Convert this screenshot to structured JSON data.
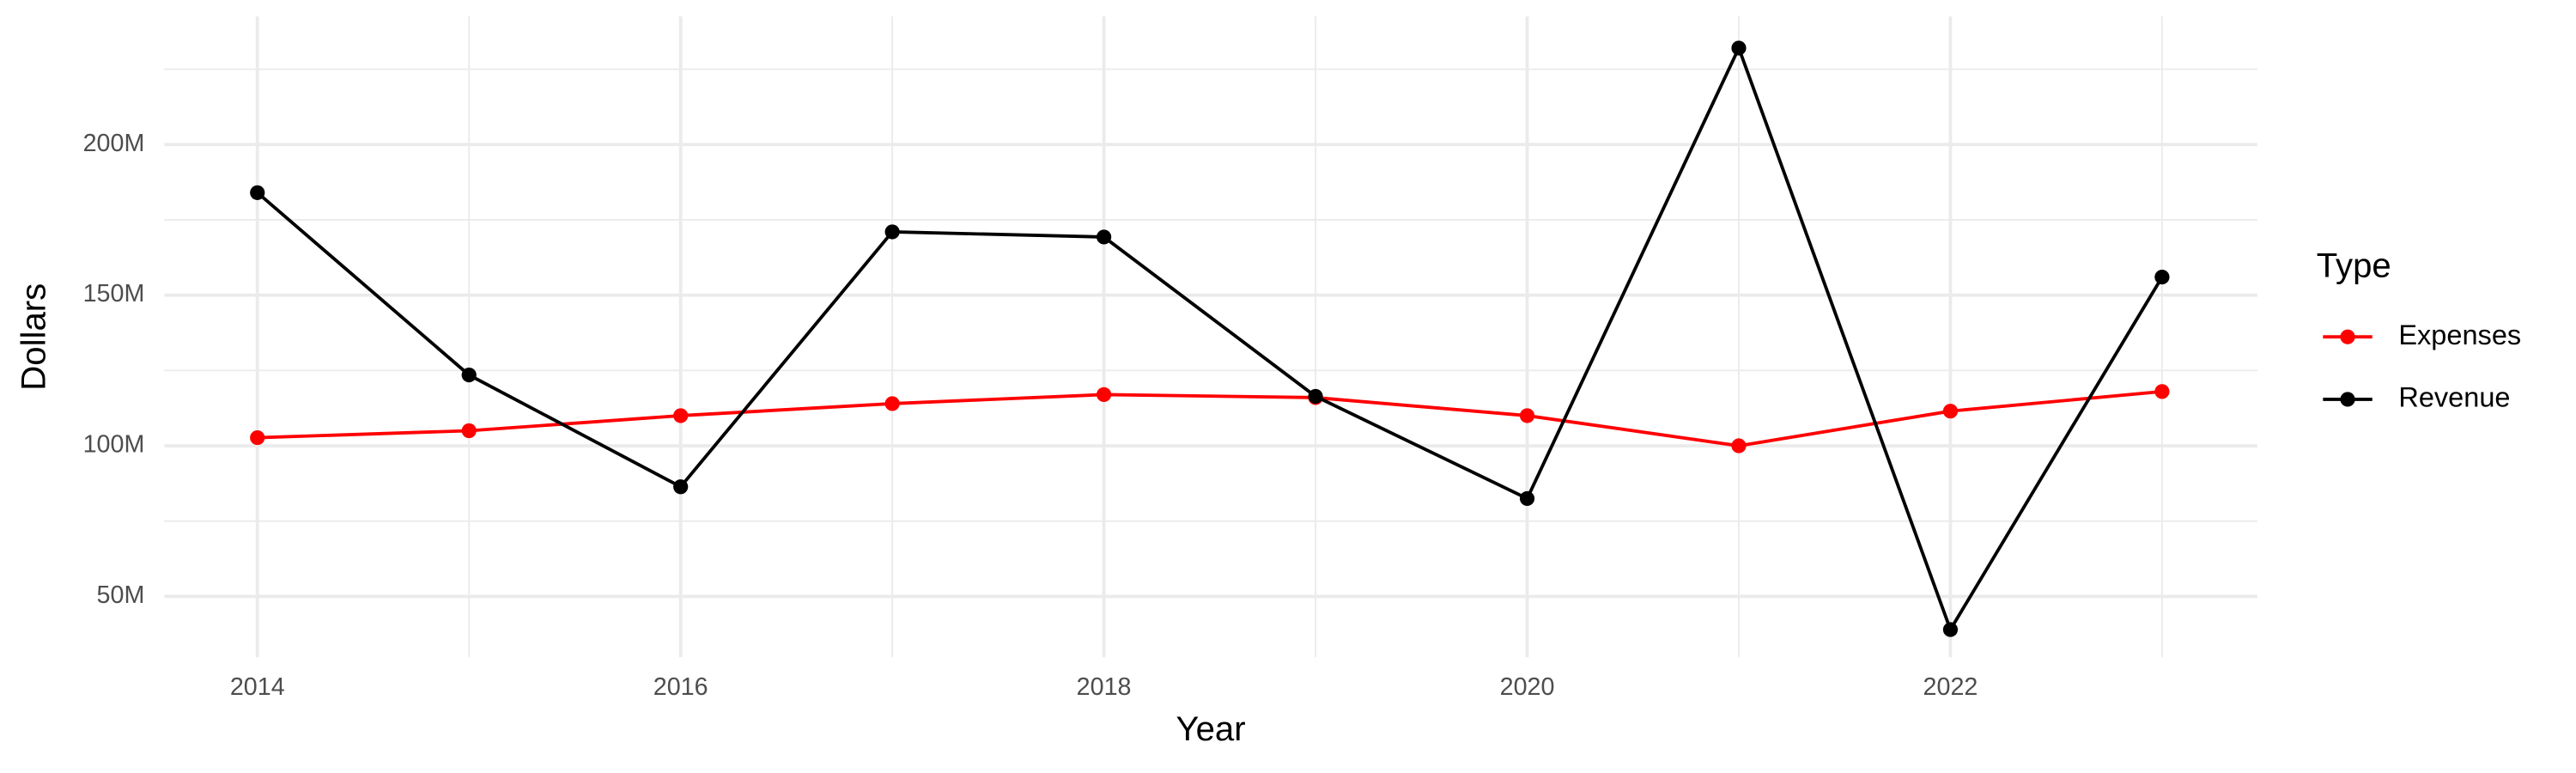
{
  "chart_data": {
    "type": "line",
    "x_label": "Year",
    "y_label": "Dollars",
    "legend_title": "Type",
    "x": [
      2014,
      2015,
      2016,
      2017,
      2018,
      2019,
      2020,
      2021,
      2022,
      2023
    ],
    "series": [
      {
        "name": "Expenses",
        "color": "#ff0000",
        "values": [
          102.7,
          105,
          110,
          114,
          117,
          116,
          110,
          100,
          111.5,
          118
        ]
      },
      {
        "name": "Revenue",
        "color": "#000000",
        "values": [
          184,
          123.5,
          86.4,
          171,
          169.3,
          116.4,
          82.5,
          232,
          39,
          156
        ]
      }
    ],
    "xlim": [
      2013.56,
      2023.45
    ],
    "xticks": [
      2014,
      2016,
      2018,
      2020,
      2022
    ],
    "ylim": [
      29.8,
      242.5
    ],
    "yticks": [
      {
        "value": 50,
        "label": "50M"
      },
      {
        "value": 100,
        "label": "100M"
      },
      {
        "value": 150,
        "label": "150M"
      },
      {
        "value": 200,
        "label": "200M"
      }
    ],
    "grid": true,
    "legend": "right"
  }
}
